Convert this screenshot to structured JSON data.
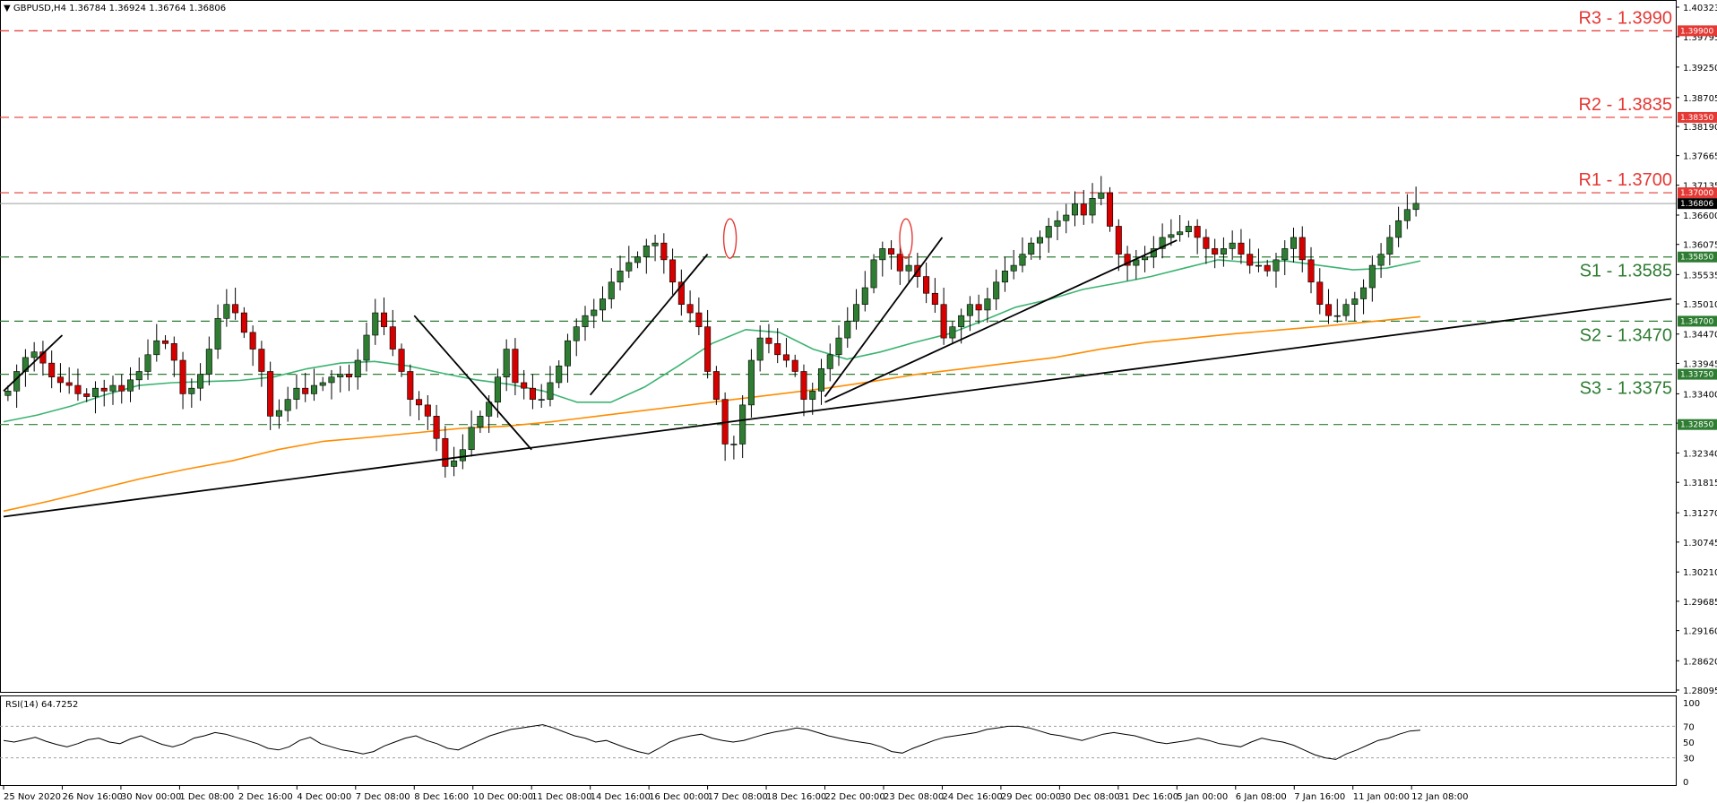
{
  "header": {
    "instrument": "GBPUSD,H4",
    "ohlc": "1.36784 1.36924 1.36764 1.36806"
  },
  "rsi_header": "RSI(14) 64.7252",
  "colors": {
    "bull": "#2e7d32",
    "bear": "#d50000",
    "wick": "#000000",
    "ma_fast": "#3cb371",
    "ma_slow": "#ff8c00",
    "resistance": "#e53935",
    "support": "#2e7d32",
    "trendline": "#000000",
    "rsi_line": "#000000"
  },
  "chart_data": [
    {
      "type": "candlestick",
      "title": "GBPUSD,H4",
      "ylim": [
        1.28095,
        1.40323
      ],
      "y_ticks": [
        "1.40323",
        "1.39795",
        "1.39250",
        "1.38705",
        "1.38190",
        "1.37665",
        "1.37135",
        "1.36600",
        "1.36075",
        "1.35535",
        "1.35010",
        "1.34470",
        "1.33945",
        "1.33400",
        "1.32875",
        "1.32340",
        "1.31815",
        "1.31270",
        "1.30745",
        "1.30210",
        "1.29685",
        "1.29160",
        "1.28620",
        "1.28095"
      ],
      "x_labels": [
        "25 Nov 2020",
        "26 Nov 16:00",
        "30 Nov 00:00",
        "1 Dec 08:00",
        "2 Dec 16:00",
        "4 Dec 00:00",
        "7 Dec 08:00",
        "8 Dec 16:00",
        "10 Dec 00:00",
        "11 Dec 08:00",
        "14 Dec 16:00",
        "16 Dec 00:00",
        "17 Dec 08:00",
        "18 Dec 16:00",
        "22 Dec 00:00",
        "23 Dec 08:00",
        "24 Dec 16:00",
        "29 Dec 00:00",
        "30 Dec 08:00",
        "31 Dec 16:00",
        "5 Jan 00:00",
        "6 Jan 08:00",
        "7 Jan 16:00",
        "11 Jan 00:00",
        "12 Jan 08:00"
      ],
      "close_path": [
        1.3345,
        1.338,
        1.3405,
        1.3415,
        1.3395,
        1.337,
        1.336,
        1.3355,
        1.334,
        1.3335,
        1.335,
        1.3345,
        1.3355,
        1.3345,
        1.3365,
        1.338,
        1.341,
        1.3435,
        1.343,
        1.34,
        1.334,
        1.335,
        1.3375,
        1.342,
        1.3475,
        1.35,
        1.3485,
        1.345,
        1.342,
        1.338,
        1.33,
        1.331,
        1.333,
        1.335,
        1.334,
        1.3355,
        1.336,
        1.337,
        1.3375,
        1.337,
        1.34,
        1.3445,
        1.3485,
        1.346,
        1.342,
        1.338,
        1.333,
        1.332,
        1.33,
        1.326,
        1.321,
        1.322,
        1.324,
        1.328,
        1.33,
        1.3325,
        1.337,
        1.342,
        1.336,
        1.335,
        1.333,
        1.333,
        1.336,
        1.339,
        1.3435,
        1.346,
        1.348,
        1.349,
        1.351,
        1.354,
        1.356,
        1.3575,
        1.3585,
        1.3605,
        1.361,
        1.358,
        1.354,
        1.35,
        1.3485,
        1.346,
        1.338,
        1.333,
        1.325,
        1.325,
        1.332,
        1.34,
        1.344,
        1.343,
        1.341,
        1.34,
        1.338,
        1.333,
        1.3345,
        1.3385,
        1.341,
        1.344,
        1.347,
        1.35,
        1.353,
        1.358,
        1.36,
        1.359,
        1.356,
        1.357,
        1.355,
        1.352,
        1.35,
        1.344,
        1.346,
        1.348,
        1.35,
        1.349,
        1.351,
        1.354,
        1.356,
        1.357,
        1.359,
        1.361,
        1.362,
        1.364,
        1.365,
        1.366,
        1.368,
        1.366,
        1.369,
        1.37,
        1.364,
        1.359,
        1.357,
        1.358,
        1.3585,
        1.36,
        1.362,
        1.3625,
        1.363,
        1.364,
        1.362,
        1.36,
        1.359,
        1.36,
        1.361,
        1.359,
        1.357,
        1.357,
        1.356,
        1.358,
        1.36,
        1.362,
        1.358,
        1.354,
        1.35,
        1.348,
        1.348,
        1.35,
        1.351,
        1.353,
        1.357,
        1.359,
        1.362,
        1.365,
        1.367,
        1.3681
      ],
      "resistance_levels": [
        {
          "name": "R3",
          "value": 1.399,
          "label": "R3 - 1.3990",
          "tag": "1.39900"
        },
        {
          "name": "R2",
          "value": 1.3835,
          "label": "R2 - 1.3835",
          "tag": "1.38350"
        },
        {
          "name": "R1",
          "value": 1.37,
          "label": "R1 - 1.3700",
          "tag": "1.37000"
        }
      ],
      "support_levels": [
        {
          "name": "S1",
          "value": 1.3585,
          "label": "S1 - 1.3585",
          "tag": "1.35850"
        },
        {
          "name": "S2",
          "value": 1.347,
          "label": "S2 - 1.3470",
          "tag": "1.34700"
        },
        {
          "name": "S3",
          "value": 1.3375,
          "label": "S3 - 1.3375",
          "tag": "1.33750"
        },
        {
          "name": "",
          "value": 1.3285,
          "label": "",
          "tag": "1.32850"
        }
      ],
      "current_price": {
        "value": 1.36806,
        "tag": "1.36806"
      },
      "ma_fast": [
        1.329,
        1.3302,
        1.3318,
        1.3338,
        1.3355,
        1.336,
        1.3362,
        1.3364,
        1.337,
        1.3385,
        1.3395,
        1.3398,
        1.339,
        1.3377,
        1.3365,
        1.3357,
        1.3345,
        1.3325,
        1.3325,
        1.3352,
        1.339,
        1.343,
        1.3455,
        1.345,
        1.342,
        1.3402,
        1.3415,
        1.3432,
        1.3447,
        1.347,
        1.3495,
        1.3509,
        1.3527,
        1.3538,
        1.355,
        1.3565,
        1.358,
        1.3575,
        1.3578,
        1.357,
        1.3562,
        1.3565,
        1.3578
      ],
      "ma_slow": [
        1.313,
        1.3148,
        1.3168,
        1.3188,
        1.3205,
        1.322,
        1.324,
        1.3255,
        1.3262,
        1.327,
        1.3278,
        1.3282,
        1.329,
        1.33,
        1.331,
        1.332,
        1.333,
        1.334,
        1.335,
        1.3362,
        1.3375,
        1.3385,
        1.3395,
        1.3405,
        1.342,
        1.3432,
        1.344,
        1.3448,
        1.3455,
        1.3462,
        1.347,
        1.3478
      ],
      "trend_lines": [
        {
          "from": [
            "25 Nov 2020",
            1.3345
          ],
          "to": [
            "26 Nov 16:00",
            1.3445
          ]
        },
        {
          "from": [
            "8 Dec 16:00",
            1.348
          ],
          "to": [
            "11 Dec 08:00",
            1.324
          ]
        },
        {
          "from": [
            "14 Dec 16:00",
            1.3338
          ],
          "to": [
            "17 Dec 08:00",
            1.359
          ]
        },
        {
          "from": [
            "22 Dec 00:00",
            1.3335
          ],
          "to": [
            "24 Dec 16:00",
            1.362
          ]
        },
        {
          "from": [
            "22 Dec 00:00",
            1.3325
          ],
          "to": [
            "5 Jan 00:00",
            1.3615
          ]
        },
        {
          "from": [
            "25 Nov 2020",
            1.312
          ],
          "to": [
            "12 Jan 08:00",
            1.351
          ]
        }
      ],
      "annotations": [
        {
          "type": "ellipse",
          "at": "17 Dec 08:00"
        },
        {
          "type": "ellipse",
          "at": "23 Dec 08:00"
        }
      ]
    },
    {
      "type": "line",
      "title": "RSI(14) 64.7252",
      "ylim": [
        0,
        100
      ],
      "y_ticks": [
        "100",
        "70",
        "50",
        "30",
        "0"
      ],
      "values": [
        52,
        50,
        53,
        56,
        51,
        47,
        44,
        48,
        53,
        55,
        50,
        48,
        54,
        58,
        52,
        47,
        44,
        48,
        55,
        58,
        62,
        60,
        56,
        52,
        48,
        42,
        40,
        44,
        52,
        56,
        48,
        44,
        40,
        38,
        35,
        38,
        45,
        50,
        55,
        58,
        52,
        48,
        42,
        40,
        46,
        52,
        58,
        62,
        66,
        68,
        70,
        72,
        68,
        63,
        58,
        55,
        50,
        52,
        47,
        42,
        38,
        35,
        42,
        50,
        55,
        58,
        60,
        55,
        52,
        50,
        52,
        56,
        60,
        63,
        65,
        68,
        66,
        62,
        58,
        55,
        52,
        50,
        48,
        44,
        38,
        36,
        42,
        47,
        52,
        56,
        58,
        60,
        62,
        66,
        68,
        70,
        70,
        68,
        64,
        60,
        58,
        55,
        52,
        56,
        60,
        62,
        60,
        58,
        54,
        50,
        48,
        50,
        52,
        55,
        52,
        48,
        46,
        44,
        50,
        55,
        52,
        50,
        46,
        40,
        34,
        30,
        28,
        35,
        40,
        46,
        52,
        55,
        60,
        64,
        65
      ]
    }
  ]
}
